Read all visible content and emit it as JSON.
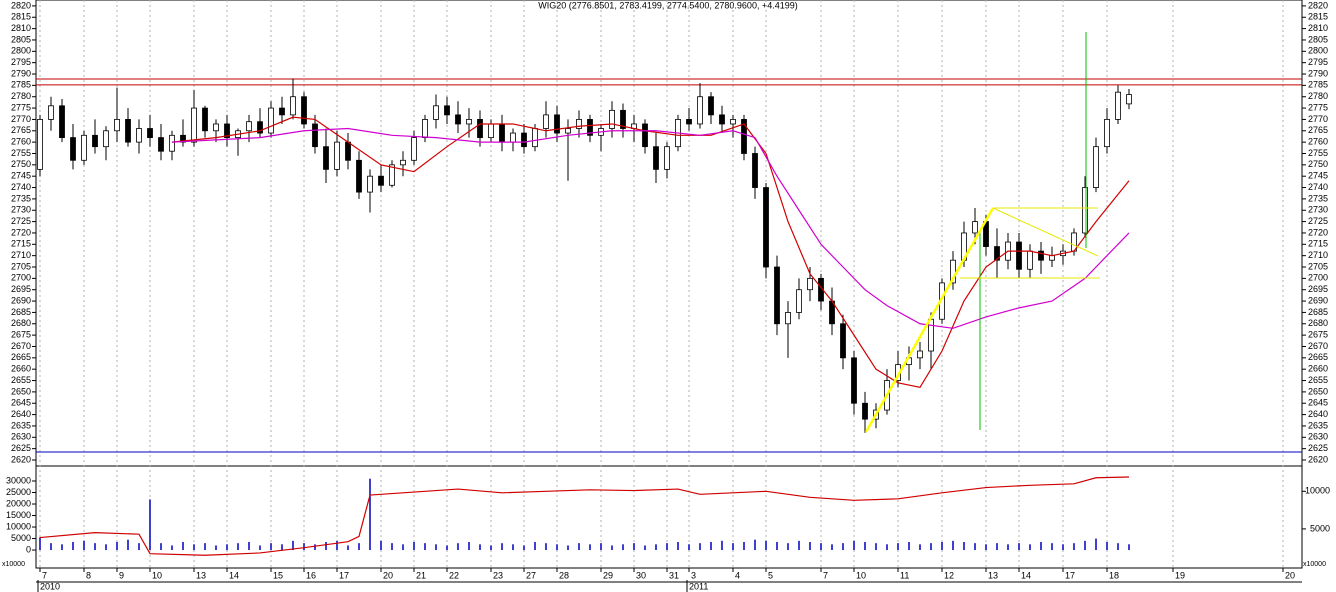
{
  "chart_data": [
    {
      "type": "candlestick",
      "title": "WIG20 (2776.8501, 2783.4199, 2774.5400, 2780.9600, +4.4199)",
      "categories": [
        "7",
        null,
        null,
        null,
        "8",
        null,
        null,
        "9",
        null,
        null,
        "10",
        null,
        null,
        null,
        "13",
        null,
        null,
        "14",
        null,
        null,
        null,
        "15",
        null,
        null,
        "16",
        null,
        null,
        "17",
        null,
        null,
        null,
        "20",
        null,
        null,
        "21",
        null,
        null,
        "22",
        null,
        null,
        null,
        "23",
        null,
        null,
        "27",
        null,
        null,
        "28",
        null,
        null,
        null,
        "29",
        null,
        null,
        "30",
        null,
        null,
        "31",
        null,
        "3",
        null,
        null,
        null,
        "4",
        null,
        null,
        "5",
        null,
        null,
        null,
        null,
        "7",
        null,
        null,
        "10",
        null,
        null,
        null,
        "11",
        null,
        null,
        null,
        "12",
        null,
        null,
        null,
        "13",
        null,
        null,
        "14",
        null,
        null,
        null,
        "17",
        null,
        null,
        null,
        "18",
        null,
        null,
        null,
        null,
        null,
        "19",
        null,
        null,
        null,
        null,
        null,
        null,
        null,
        null,
        null,
        "20"
      ],
      "years": [
        "2010",
        null,
        null,
        null,
        null,
        null,
        null,
        null,
        null,
        null,
        null,
        null,
        null,
        null,
        null,
        null,
        null,
        null,
        null,
        null,
        null,
        null,
        null,
        null,
        null,
        null,
        null,
        null,
        null,
        null,
        null,
        null,
        null,
        null,
        null,
        null,
        null,
        null,
        null,
        null,
        null,
        null,
        null,
        null,
        null,
        null,
        null,
        null,
        null,
        null,
        null,
        null,
        null,
        null,
        null,
        null,
        null,
        null,
        null,
        "2011",
        null,
        null,
        null,
        null,
        null,
        null,
        null,
        null,
        null,
        null,
        null,
        null,
        null,
        null,
        null,
        null,
        null,
        null,
        null,
        null,
        null,
        null,
        null,
        null,
        null,
        null,
        null,
        null,
        null,
        null,
        null,
        null,
        null,
        null,
        null,
        null,
        null,
        null,
        null,
        null,
        null,
        null,
        null,
        null,
        null,
        null,
        null,
        null,
        null,
        null,
        null,
        null,
        null,
        null
      ],
      "ohlc": [
        [
          2748,
          2772,
          2745,
          2770
        ],
        [
          2770,
          2780,
          2765,
          2776
        ],
        [
          2776,
          2779,
          2760,
          2762
        ],
        [
          2762,
          2768,
          2748,
          2752
        ],
        [
          2752,
          2765,
          2750,
          2763
        ],
        [
          2763,
          2770,
          2755,
          2758
        ],
        [
          2758,
          2767,
          2752,
          2765
        ],
        [
          2765,
          2784,
          2760,
          2770
        ],
        [
          2770,
          2775,
          2758,
          2760
        ],
        [
          2760,
          2770,
          2755,
          2766
        ],
        [
          2766,
          2772,
          2758,
          2762
        ],
        [
          2762,
          2768,
          2752,
          2756
        ],
        [
          2756,
          2765,
          2752,
          2763
        ],
        [
          2763,
          2770,
          2758,
          2760
        ],
        [
          2760,
          2783,
          2758,
          2775
        ],
        [
          2775,
          2776,
          2762,
          2765
        ],
        [
          2765,
          2770,
          2760,
          2768
        ],
        [
          2768,
          2772,
          2758,
          2762
        ],
        [
          2762,
          2766,
          2754,
          2765
        ],
        [
          2765,
          2772,
          2760,
          2769
        ],
        [
          2769,
          2775,
          2762,
          2764
        ],
        [
          2764,
          2778,
          2762,
          2775
        ],
        [
          2775,
          2780,
          2768,
          2772
        ],
        [
          2772,
          2788,
          2770,
          2780
        ],
        [
          2780,
          2782,
          2766,
          2768
        ],
        [
          2768,
          2772,
          2755,
          2758
        ],
        [
          2758,
          2766,
          2742,
          2748
        ],
        [
          2748,
          2765,
          2745,
          2760
        ],
        [
          2760,
          2764,
          2748,
          2752
        ],
        [
          2752,
          2756,
          2735,
          2738
        ],
        [
          2738,
          2748,
          2729,
          2745
        ],
        [
          2745,
          2750,
          2738,
          2741
        ],
        [
          2741,
          2752,
          2740,
          2750
        ],
        [
          2750,
          2756,
          2745,
          2752
        ],
        [
          2752,
          2765,
          2750,
          2762
        ],
        [
          2762,
          2772,
          2760,
          2770
        ],
        [
          2770,
          2781,
          2766,
          2776
        ],
        [
          2776,
          2780,
          2768,
          2772
        ],
        [
          2772,
          2778,
          2764,
          2768
        ],
        [
          2768,
          2775,
          2762,
          2770
        ],
        [
          2770,
          2774,
          2758,
          2762
        ],
        [
          2762,
          2770,
          2760,
          2768
        ],
        [
          2768,
          2772,
          2756,
          2760
        ],
        [
          2760,
          2766,
          2756,
          2764
        ],
        [
          2764,
          2768,
          2755,
          2758
        ],
        [
          2758,
          2768,
          2756,
          2766
        ],
        [
          2766,
          2778,
          2762,
          2772
        ],
        [
          2772,
          2776,
          2760,
          2764
        ],
        [
          2764,
          2770,
          2743,
          2766
        ],
        [
          2766,
          2774,
          2762,
          2770
        ],
        [
          2770,
          2772,
          2760,
          2763
        ],
        [
          2763,
          2768,
          2756,
          2766
        ],
        [
          2766,
          2778,
          2762,
          2774
        ],
        [
          2774,
          2777,
          2762,
          2766
        ],
        [
          2766,
          2772,
          2760,
          2768
        ],
        [
          2768,
          2770,
          2755,
          2758
        ],
        [
          2758,
          2764,
          2742,
          2748
        ],
        [
          2748,
          2760,
          2744,
          2758
        ],
        [
          2758,
          2772,
          2756,
          2770
        ],
        [
          2770,
          2775,
          2765,
          2768
        ],
        [
          2768,
          2786,
          2766,
          2780
        ],
        [
          2780,
          2782,
          2768,
          2772
        ],
        [
          2772,
          2776,
          2764,
          2768
        ],
        [
          2768,
          2772,
          2762,
          2770
        ],
        [
          2770,
          2772,
          2752,
          2755
        ],
        [
          2755,
          2758,
          2735,
          2740
        ],
        [
          2740,
          2742,
          2700,
          2705
        ],
        [
          2705,
          2710,
          2675,
          2680
        ],
        [
          2680,
          2690,
          2665,
          2685
        ],
        [
          2685,
          2700,
          2682,
          2695
        ],
        [
          2695,
          2705,
          2690,
          2700
        ],
        [
          2700,
          2702,
          2686,
          2690
        ],
        [
          2690,
          2696,
          2675,
          2680
        ],
        [
          2680,
          2684,
          2660,
          2665
        ],
        [
          2665,
          2668,
          2640,
          2645
        ],
        [
          2645,
          2650,
          2632,
          2638
        ],
        [
          2638,
          2645,
          2634,
          2642
        ],
        [
          2642,
          2660,
          2640,
          2655
        ],
        [
          2655,
          2668,
          2652,
          2662
        ],
        [
          2662,
          2670,
          2655,
          2665
        ],
        [
          2665,
          2672,
          2660,
          2668
        ],
        [
          2668,
          2685,
          2660,
          2682
        ],
        [
          2682,
          2700,
          2680,
          2698
        ],
        [
          2698,
          2712,
          2695,
          2708
        ],
        [
          2708,
          2725,
          2705,
          2720
        ],
        [
          2720,
          2731,
          2715,
          2725
        ],
        [
          2725,
          2728,
          2710,
          2714
        ],
        [
          2714,
          2722,
          2700,
          2708
        ],
        [
          2708,
          2720,
          2704,
          2716
        ],
        [
          2716,
          2720,
          2700,
          2704
        ],
        [
          2704,
          2715,
          2700,
          2712
        ],
        [
          2712,
          2716,
          2702,
          2708
        ],
        [
          2708,
          2714,
          2705,
          2710
        ],
        [
          2710,
          2715,
          2706,
          2712
        ],
        [
          2712,
          2722,
          2710,
          2720
        ],
        [
          2720,
          2745,
          2718,
          2740
        ],
        [
          2740,
          2762,
          2738,
          2758
        ],
        [
          2758,
          2775,
          2755,
          2770
        ],
        [
          2770,
          2785,
          2768,
          2782
        ],
        [
          2776.8501,
          2783.4199,
          2774.54,
          2780.96
        ],
        null,
        null,
        null,
        null,
        null,
        null,
        null,
        null,
        null,
        null,
        null,
        null,
        null,
        null
      ],
      "up_color": "#ffffff",
      "down_color": "#000000",
      "lines": [
        {
          "color": "#d00000",
          "x": [
            12,
            16,
            20,
            23,
            25,
            28,
            31,
            34,
            37,
            40,
            43,
            46,
            49,
            52,
            55,
            58,
            61,
            64,
            66,
            68,
            70,
            72,
            74,
            76,
            78,
            80,
            82,
            84,
            86,
            88,
            90,
            92,
            94,
            96,
            99
          ],
          "values": [
            2760,
            2762,
            2765,
            2771,
            2770,
            2760,
            2750,
            2747,
            2758,
            2768,
            2768,
            2765,
            2767,
            2768,
            2765,
            2763,
            2763,
            2768,
            2755,
            2725,
            2702,
            2690,
            2675,
            2660,
            2654,
            2652,
            2668,
            2690,
            2705,
            2712,
            2712,
            2710,
            2712,
            2725,
            2743
          ]
        },
        {
          "color": "#d000d0",
          "x": [
            12,
            20,
            24,
            28,
            32,
            36,
            40,
            44,
            48,
            52,
            56,
            60,
            63,
            65,
            67,
            69,
            71,
            73,
            75,
            77,
            80,
            83,
            86,
            89,
            92,
            95,
            99
          ],
          "values": [
            2760,
            2762,
            2765,
            2766,
            2763,
            2762,
            2760,
            2760,
            2763,
            2765,
            2765,
            2763,
            2765,
            2762,
            2745,
            2730,
            2715,
            2705,
            2695,
            2688,
            2680,
            2678,
            2683,
            2687,
            2690,
            2700,
            2720
          ]
        }
      ],
      "levels": [
        {
          "value": 2787.8,
          "color": "#c00000"
        },
        {
          "value": 2785.2,
          "color": "#c00000"
        },
        {
          "value": 2623.5,
          "color": "#0000c0"
        }
      ],
      "ylim": [
        2617.8,
        2822.6
      ],
      "yticks": [
        2620,
        2625,
        2630,
        2635,
        2640,
        2645,
        2650,
        2655,
        2660,
        2665,
        2670,
        2675,
        2680,
        2685,
        2690,
        2695,
        2700,
        2705,
        2710,
        2715,
        2720,
        2725,
        2730,
        2735,
        2740,
        2745,
        2750,
        2755,
        2760,
        2765,
        2770,
        2775,
        2780,
        2785,
        2790,
        2795,
        2800,
        2805,
        2810,
        2815,
        2820
      ],
      "grid": true
    },
    {
      "type": "bar",
      "series": [
        {
          "color": "#0000c0",
          "values": [
            5500,
            3000,
            2500,
            3500,
            4000,
            3000,
            2500,
            3500,
            4500,
            3000,
            22000,
            3000,
            2000,
            3500,
            2500,
            3000,
            2000,
            2500,
            3000,
            3500,
            2000,
            3000,
            2500,
            4000,
            3000,
            2500,
            3500,
            4000,
            2000,
            3000,
            31000,
            4000,
            3000,
            2500,
            3500,
            3000,
            2500,
            2000,
            3000,
            3500,
            2500,
            2000,
            3000,
            2500,
            2000,
            3500,
            3000,
            2500,
            2000,
            3000,
            2500,
            3000,
            2000,
            2500,
            3000,
            2000,
            2500,
            3000,
            3500,
            2500,
            3000,
            3500,
            4000,
            3000,
            3500,
            4500,
            4000,
            3500,
            3000,
            4000,
            3500,
            3000,
            2500,
            3000,
            4000,
            3500,
            3000,
            2500,
            3000,
            3500,
            2500,
            3000,
            3500,
            4000,
            3500,
            3000,
            2500,
            3000,
            2500,
            3000,
            2500,
            3500,
            3000,
            2500,
            3000,
            4000,
            5000,
            3500,
            3000,
            2500,
            null,
            null,
            null,
            null,
            null,
            null,
            null,
            null,
            null,
            null,
            null,
            null,
            null,
            null
          ]
        },
        {
          "type": "line",
          "axis": "y2",
          "color": "#d00000",
          "x": [
            0,
            5,
            9,
            10,
            15,
            20,
            24,
            28,
            29,
            30,
            31,
            35,
            38,
            42,
            46,
            50,
            54,
            58,
            60,
            66,
            70,
            74,
            78,
            82,
            86,
            90,
            94,
            96,
            99
          ],
          "values": [
            3850,
            4500,
            4300,
            1700,
            1500,
            1800,
            2500,
            3300,
            4000,
            9500,
            9600,
            10000,
            10300,
            9800,
            10000,
            10200,
            10100,
            10300,
            9600,
            10000,
            9200,
            8800,
            9000,
            9800,
            10500,
            10800,
            11000,
            11800,
            11900
          ]
        }
      ],
      "ylim": [
        -7800,
        35650
      ],
      "yticks": [
        0,
        5000,
        10000,
        15000,
        20000,
        25000,
        30000
      ],
      "y2lim": [
        -200,
        13100
      ],
      "y2ticks": [
        5000,
        10000
      ],
      "unit_labels": [
        "x10000",
        "x10000"
      ]
    }
  ]
}
